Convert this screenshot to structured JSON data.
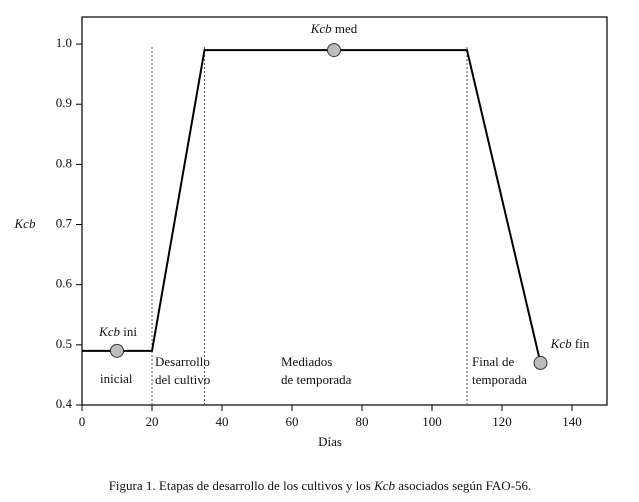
{
  "chart_data": {
    "type": "line",
    "ylabel": "Kcb",
    "xlabel": "Días",
    "x": [
      0,
      20,
      35,
      110,
      131
    ],
    "series": [
      {
        "color": "#000000",
        "values": [
          0.49,
          0.49,
          0.99,
          0.99,
          0.47
        ]
      }
    ],
    "markers": {
      "color": "#bdbdbd",
      "x": [
        10,
        72,
        131
      ],
      "values": [
        0.49,
        0.99,
        0.47
      ]
    },
    "point_labels": [
      [
        "Kcb",
        "ini"
      ],
      [
        "Kcb",
        "med"
      ],
      [
        "Kcb",
        "fin"
      ]
    ],
    "stage_boundaries": [
      20,
      35,
      110
    ],
    "stage_labels": [
      [
        "inicial"
      ],
      [
        "Desarrollo",
        "del cultivo"
      ],
      [
        "Mediados",
        "de temporada"
      ],
      [
        "Final de",
        "temporada"
      ]
    ],
    "xlim": [
      0,
      150
    ],
    "ylim": [
      0.4,
      1.045
    ],
    "xticks": [
      0,
      20,
      40,
      60,
      80,
      100,
      120,
      140
    ],
    "yticks": [
      0.4,
      0.5,
      0.6,
      0.7,
      0.8,
      0.9,
      {
        "value": 1,
        "label": "1.0"
      }
    ],
    "caption": [
      "Figura 1. Etapas de desarrollo de los cultivos y los ",
      "Kcb",
      " asociados según FAO-56."
    ]
  }
}
